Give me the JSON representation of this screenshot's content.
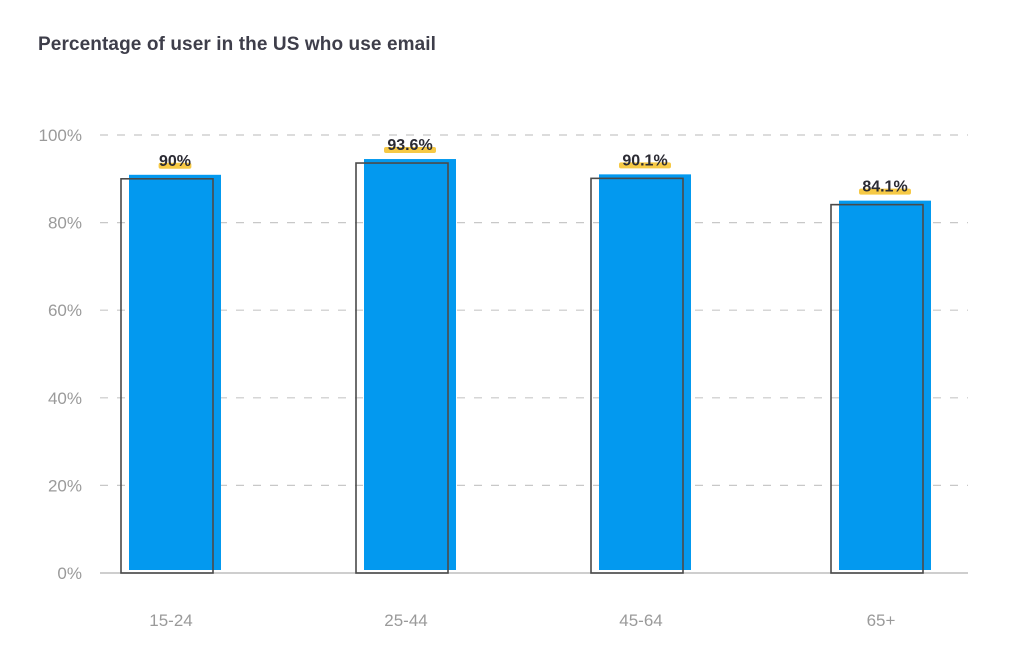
{
  "chart_data": {
    "type": "bar",
    "title": "Percentage of user in the US who use email",
    "categories": [
      "15-24",
      "25-44",
      "45-64",
      "65+"
    ],
    "values": [
      90,
      93.6,
      90.1,
      84.1
    ],
    "data_labels": [
      "90%",
      "93.6%",
      "90.1%",
      "84.1%"
    ],
    "yticks": [
      0,
      20,
      40,
      60,
      80,
      100
    ],
    "ytick_labels": [
      "0%",
      "20%",
      "40%",
      "60%",
      "80%",
      "100%"
    ],
    "ylim": [
      0,
      100
    ],
    "xlabel": "",
    "ylabel": "",
    "grid": true,
    "legend": "none",
    "colors": {
      "bar": "#0399ef",
      "outline": "#4a4a4a",
      "label_highlight": "#f6c945",
      "grid": "#c8c8c8",
      "axis": "#bdbdbd"
    }
  }
}
